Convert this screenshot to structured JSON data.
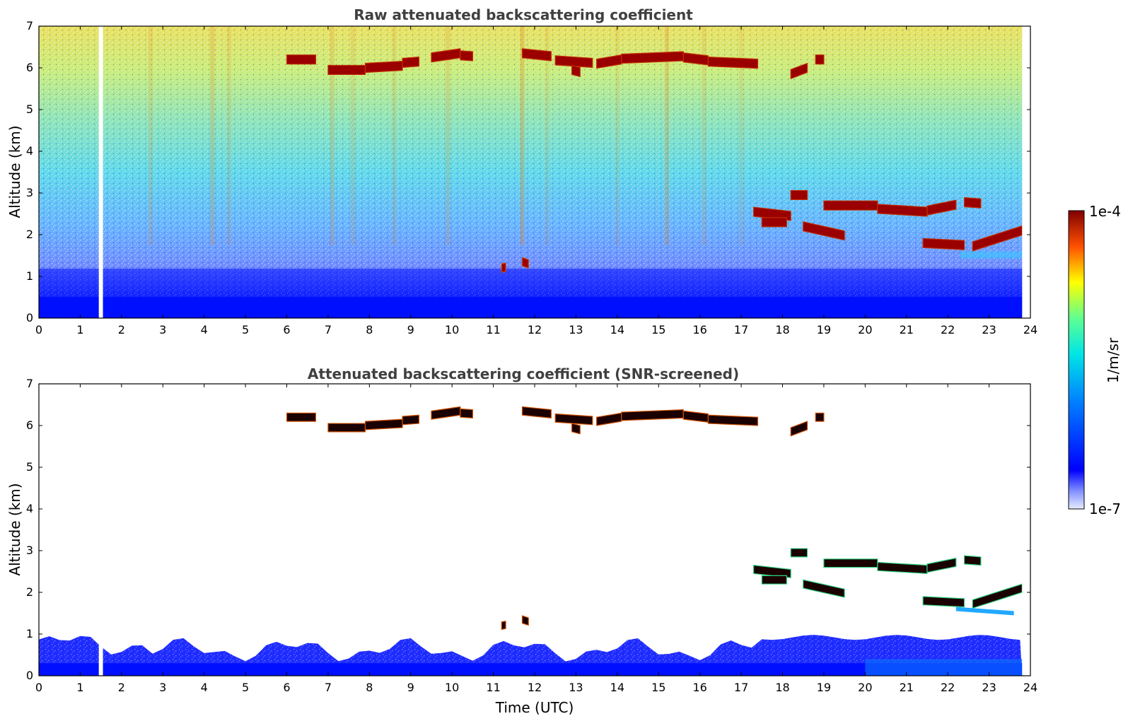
{
  "chart_data": [
    {
      "type": "heatmap",
      "title": "Raw attenuated backscattering coefficient",
      "xlabel": "",
      "ylabel": "Altitude (km)",
      "xlim": [
        0,
        24
      ],
      "ylim": [
        0,
        7
      ],
      "xticks": [
        "0",
        "1",
        "2",
        "3",
        "4",
        "5",
        "6",
        "7",
        "8",
        "9",
        "10",
        "11",
        "12",
        "13",
        "14",
        "15",
        "16",
        "17",
        "18",
        "19",
        "20",
        "21",
        "22",
        "23",
        "24"
      ],
      "yticks": [
        "0",
        "1",
        "2",
        "3",
        "4",
        "5",
        "6",
        "7"
      ],
      "data_gaps_hours": [
        [
          1.45,
          1.55
        ],
        [
          23.8,
          24
        ]
      ],
      "features": [
        {
          "name": "surface aerosol layer",
          "time_range": [
            0,
            23.8
          ],
          "altitude_km": [
            0,
            0.8
          ]
        },
        {
          "name": "upper cloud layer",
          "time_range": [
            6.0,
            19.0
          ],
          "altitude_km": [
            5.9,
            6.4
          ]
        },
        {
          "name": "mid-level cloud layer",
          "time_range": [
            17.3,
            23.8
          ],
          "altitude_km": [
            1.6,
            3.0
          ]
        },
        {
          "name": "low cloud",
          "time_range": [
            11.2,
            11.9
          ],
          "altitude_km": [
            1.2,
            1.4
          ]
        }
      ]
    },
    {
      "type": "heatmap",
      "title": "Attenuated backscattering coefficient (SNR-screened)",
      "xlabel": "Time (UTC)",
      "ylabel": "Altitude (km)",
      "xlim": [
        0,
        24
      ],
      "ylim": [
        0,
        7
      ],
      "xticks": [
        "0",
        "1",
        "2",
        "3",
        "4",
        "5",
        "6",
        "7",
        "8",
        "9",
        "10",
        "11",
        "12",
        "13",
        "14",
        "15",
        "16",
        "17",
        "18",
        "19",
        "20",
        "21",
        "22",
        "23",
        "24"
      ],
      "yticks": [
        "0",
        "1",
        "2",
        "3",
        "4",
        "5",
        "6",
        "7"
      ],
      "data_gaps_hours": [
        [
          1.45,
          1.55
        ],
        [
          23.8,
          24
        ]
      ],
      "features": [
        {
          "name": "boundary layer",
          "time_range": [
            0,
            23.8
          ],
          "altitude_km": [
            0,
            1.0
          ]
        },
        {
          "name": "upper cloud layer",
          "time_range": [
            6.0,
            19.0
          ],
          "altitude_km": [
            5.9,
            6.4
          ]
        },
        {
          "name": "mid-level cloud layer",
          "time_range": [
            17.3,
            23.8
          ],
          "altitude_km": [
            1.6,
            3.0
          ]
        }
      ]
    }
  ],
  "colorbar": {
    "label": "1/m/sr",
    "max_label": "1e-4",
    "min_label": "1e-7",
    "scale": "log",
    "colormap": "jet"
  }
}
